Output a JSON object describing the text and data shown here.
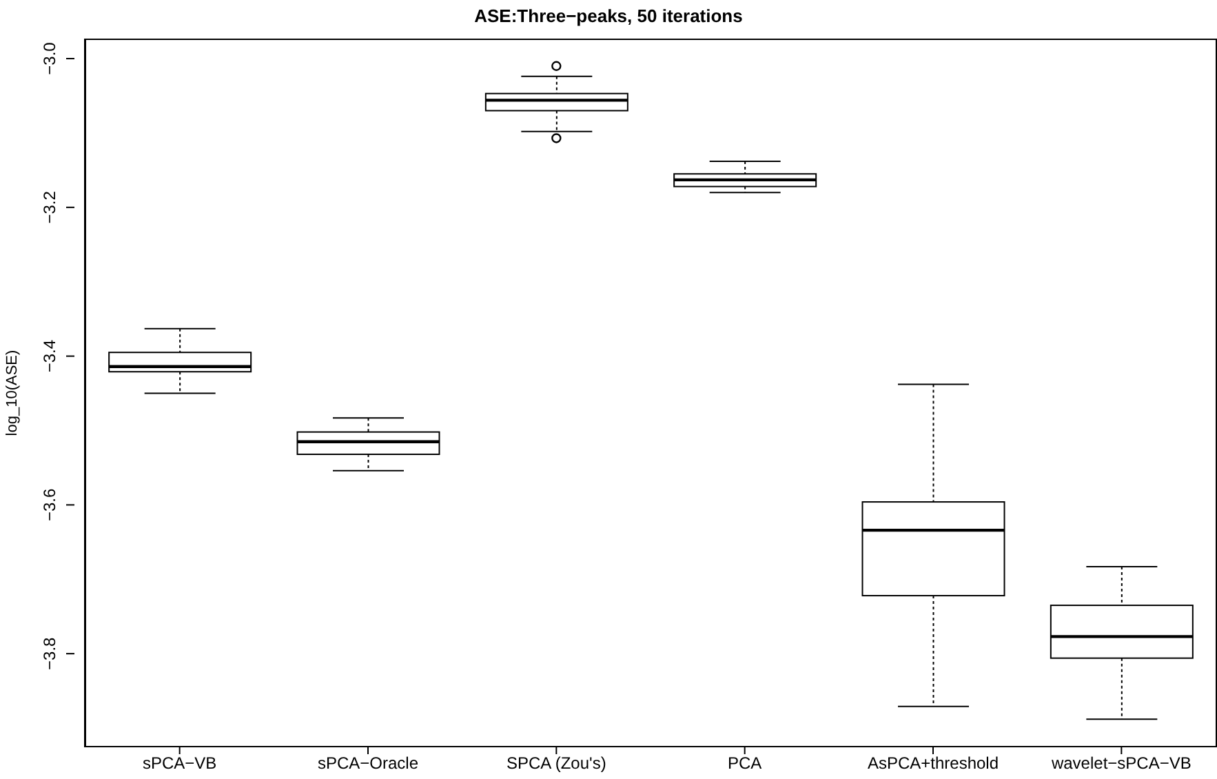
{
  "chart_data": {
    "type": "box",
    "title": "ASE:Three−peaks, 50 iterations",
    "ylabel": "log_10(ASE)",
    "categories": [
      "sPCA−VB",
      "sPCA−Oracle",
      "SPCA (Zou's)",
      "PCA",
      "AsPCA+threshold",
      "wavelet−sPCA−VB"
    ],
    "boxes": [
      {
        "low": -3.45,
        "q1": -3.421,
        "median": -3.414,
        "q3": -3.395,
        "high": -3.363
      },
      {
        "low": -3.554,
        "q1": -3.532,
        "median": -3.515,
        "q3": -3.502,
        "high": -3.483
      },
      {
        "low": -3.098,
        "q1": -3.07,
        "median": -3.056,
        "q3": -3.047,
        "high": -3.024,
        "outliers": [
          -3.01,
          -3.107
        ]
      },
      {
        "low": -3.18,
        "q1": -3.172,
        "median": -3.163,
        "q3": -3.155,
        "high": -3.138
      },
      {
        "low": -3.871,
        "q1": -3.722,
        "median": -3.634,
        "q3": -3.596,
        "high": -3.438
      },
      {
        "low": -3.888,
        "q1": -3.806,
        "median": -3.777,
        "q3": -3.735,
        "high": -3.683
      }
    ],
    "color": "#000000",
    "ylim": [
      -3.924,
      -2.975
    ],
    "yticks": [
      {
        "value": -3.8,
        "label": "−3.8"
      },
      {
        "value": -3.6,
        "label": "−3.6"
      },
      {
        "value": -3.4,
        "label": "−3.4"
      },
      {
        "value": -3.2,
        "label": "−3.2"
      },
      {
        "value": -3.0,
        "label": "−3.0"
      }
    ],
    "grid": false,
    "legend": false
  }
}
